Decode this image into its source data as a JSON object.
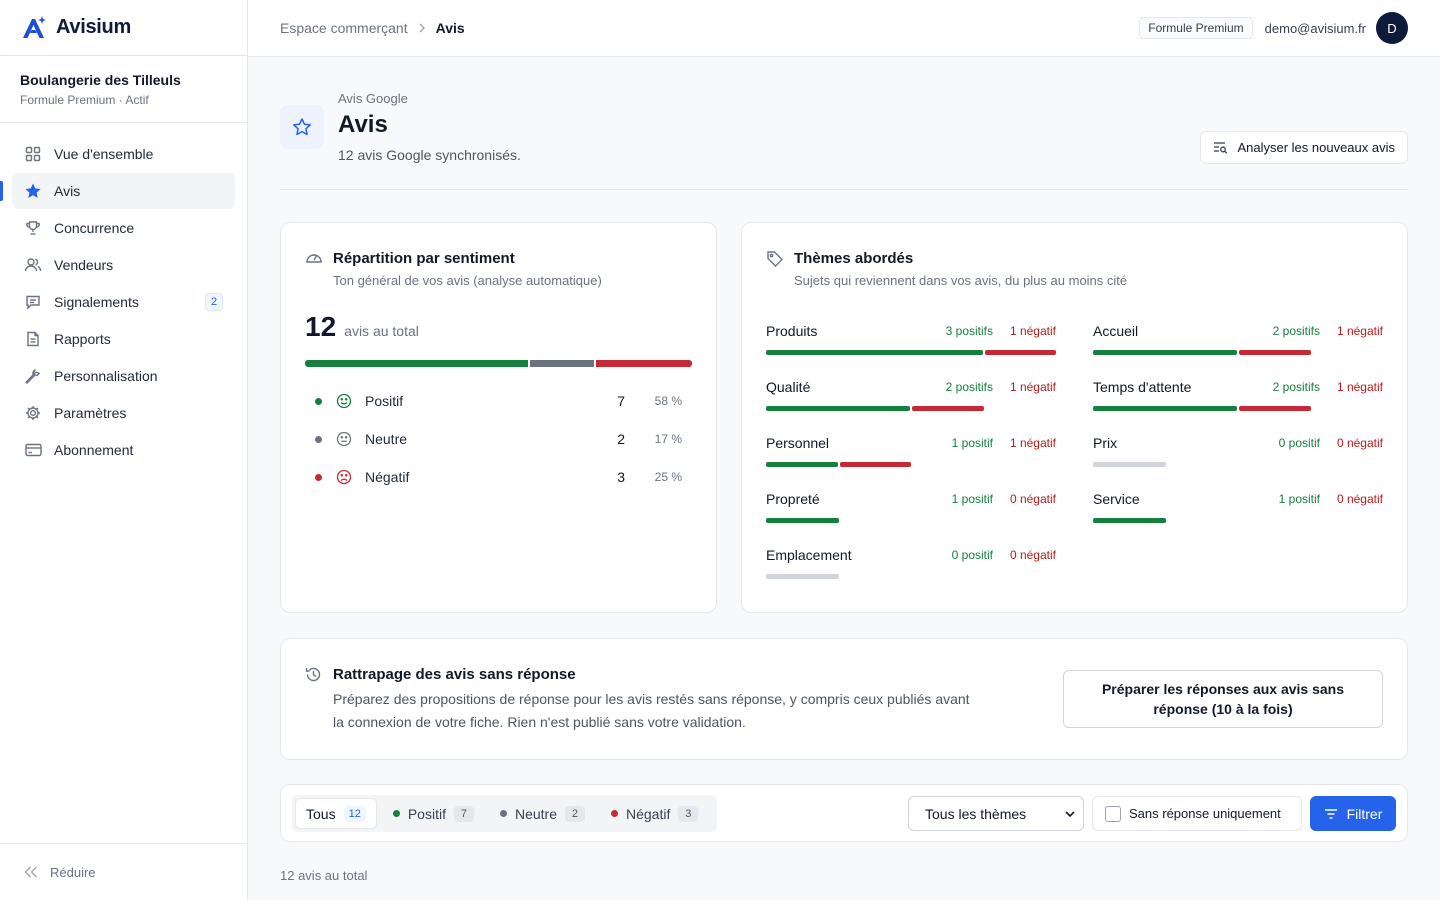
{
  "app": {
    "name": "Avisium",
    "brand_color": "#2563eb",
    "logo_color": "#0f1a3a"
  },
  "shop": {
    "name": "Boulangerie des Tilleuls",
    "plan": "Formule Premium · Actif"
  },
  "sidebar": {
    "items": [
      {
        "label": "Vue d'ensemble",
        "icon": "grid-icon"
      },
      {
        "label": "Avis",
        "icon": "star-icon",
        "active": true
      },
      {
        "label": "Concurrence",
        "icon": "trophy-icon"
      },
      {
        "label": "Vendeurs",
        "icon": "users-icon"
      },
      {
        "label": "Signalements",
        "icon": "flag-message-icon",
        "badge": "2"
      },
      {
        "label": "Rapports",
        "icon": "document-icon"
      },
      {
        "label": "Personnalisation",
        "icon": "wrench-icon"
      },
      {
        "label": "Paramètres",
        "icon": "gear-icon"
      },
      {
        "label": "Abonnement",
        "icon": "card-icon"
      }
    ],
    "collapse_label": "Réduire"
  },
  "topbar": {
    "breadcrumb_root": "Espace commerçant",
    "breadcrumb_current": "Avis",
    "plan_badge": "Formule Premium",
    "email": "demo@avisium.fr",
    "avatar_initial": "D"
  },
  "header": {
    "kicker": "Avis Google",
    "title": "Avis",
    "subtitle": "12 avis Google synchronisés.",
    "analyze_button": "Analyser les nouveaux avis"
  },
  "sentiment": {
    "title": "Répartition par sentiment",
    "subtitle": "Ton général de vos avis (analyse automatique)",
    "total": "12",
    "total_label": "avis au total",
    "rows": [
      {
        "label": "Positif",
        "count": "7",
        "percent": "58 %",
        "value": 7,
        "color": "#15803d"
      },
      {
        "label": "Neutre",
        "count": "2",
        "percent": "17 %",
        "value": 2,
        "color": "#6b7280"
      },
      {
        "label": "Négatif",
        "count": "3",
        "percent": "25 %",
        "value": 3,
        "color": "#c62835"
      }
    ]
  },
  "themes": {
    "title": "Thèmes abordés",
    "subtitle": "Sujets qui reviennent dans vos avis, du plus au moins cité",
    "items": [
      {
        "name": "Produits",
        "pos_label": "3 positifs",
        "neg_label": "1 négatif",
        "pos": 3,
        "neg": 1
      },
      {
        "name": "Accueil",
        "pos_label": "2 positifs",
        "neg_label": "1 négatif",
        "pos": 2,
        "neg": 1
      },
      {
        "name": "Qualité",
        "pos_label": "2 positifs",
        "neg_label": "1 négatif",
        "pos": 2,
        "neg": 1
      },
      {
        "name": "Temps d'attente",
        "pos_label": "2 positifs",
        "neg_label": "1 négatif",
        "pos": 2,
        "neg": 1
      },
      {
        "name": "Personnel",
        "pos_label": "1 positif",
        "neg_label": "1 négatif",
        "pos": 1,
        "neg": 1
      },
      {
        "name": "Prix",
        "pos_label": "0 positif",
        "neg_label": "0 négatif",
        "pos": 0,
        "neg": 0
      },
      {
        "name": "Propreté",
        "pos_label": "1 positif",
        "neg_label": "0 négatif",
        "pos": 1,
        "neg": 0
      },
      {
        "name": "Service",
        "pos_label": "1 positif",
        "neg_label": "0 négatif",
        "pos": 1,
        "neg": 0
      },
      {
        "name": "Emplacement",
        "pos_label": "0 positif",
        "neg_label": "0 négatif",
        "pos": 0,
        "neg": 0
      }
    ]
  },
  "catchup": {
    "title": "Rattrapage des avis sans réponse",
    "description": "Préparez des propositions de réponse pour les avis restés sans réponse, y compris ceux publiés avant la connexion de votre fiche. Rien n'est publié sans votre validation.",
    "button": "Préparer les réponses aux avis sans réponse (10 à la fois)"
  },
  "filters": {
    "tabs": [
      {
        "label": "Tous",
        "count": "12",
        "active": true
      },
      {
        "label": "Positif",
        "count": "7",
        "color": "#15803d"
      },
      {
        "label": "Neutre",
        "count": "2",
        "color": "#6b7280"
      },
      {
        "label": "Négatif",
        "count": "3",
        "color": "#c62835"
      }
    ],
    "theme_select": "Tous les thèmes",
    "unanswered_only": "Sans réponse uniquement",
    "filter_button": "Filtrer"
  },
  "footer": {
    "count_label": "12 avis au total"
  }
}
